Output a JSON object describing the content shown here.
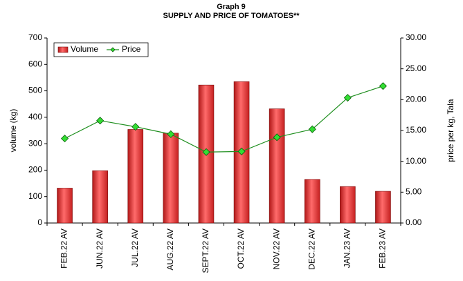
{
  "chart_data": {
    "type": "bar",
    "title": "Graph 9",
    "subtitle": "SUPPLY AND PRICE OF TOMATOES**",
    "ylabel": "volume (kg)",
    "y2label": "price per kg, Tala",
    "categories": [
      "FEB.22 AV",
      "JUN.22 AV",
      "JUL.22 AV",
      "AUG.22 AV",
      "SEPT.22 AV",
      "OCT.22 AV",
      "NOV.22 AV",
      "DEC.22 AV",
      "JAN.23 AV",
      "FEB.23 AV"
    ],
    "series": [
      {
        "name": "Volume",
        "type": "bar",
        "color": "#e8393a",
        "values": [
          132,
          198,
          354,
          340,
          522,
          535,
          432,
          165,
          138,
          120
        ]
      },
      {
        "name": "Price",
        "type": "line",
        "axis": "y2",
        "color": "#1f8f1f",
        "values": [
          13.7,
          16.6,
          15.6,
          14.4,
          11.5,
          11.6,
          13.9,
          15.2,
          20.3,
          22.2
        ]
      }
    ],
    "ylim": [
      0,
      700
    ],
    "yticks": [
      0,
      100,
      200,
      300,
      400,
      500,
      600,
      700
    ],
    "y2lim": [
      0,
      30
    ],
    "y2ticks": [
      {
        "value": 0,
        "label": "0.00"
      },
      {
        "value": 5,
        "label": "5.00"
      },
      {
        "value": 10,
        "label": "10.00"
      },
      {
        "value": 15,
        "label": "15.00"
      },
      {
        "value": 20,
        "label": "20.00"
      },
      {
        "value": 25,
        "label": "25.00"
      },
      {
        "value": 30,
        "label": "30.00"
      }
    ],
    "legend": "top-left",
    "grid": false
  }
}
